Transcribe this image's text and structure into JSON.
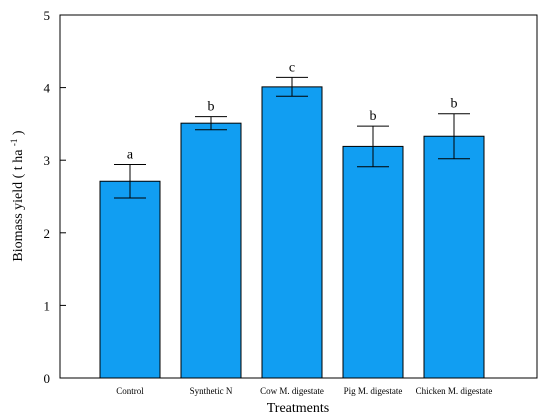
{
  "chart_data": {
    "type": "bar",
    "categories": [
      "Control",
      "Synthetic N",
      "Cow M. digestate",
      "Pig M. digestate",
      "Chicken M. digestate"
    ],
    "values": [
      2.71,
      3.51,
      4.01,
      3.19,
      3.33
    ],
    "errors": [
      0.23,
      0.09,
      0.13,
      0.28,
      0.31
    ],
    "significance_letters": [
      "a",
      "b",
      "c",
      "b",
      "b"
    ],
    "xlabel": "Treatments",
    "ylabel": "Biomass yield ( t ha",
    "ylabel_superscript": "-1",
    "ylabel_suffix": ")",
    "ylim": [
      0,
      5
    ],
    "yticks": [
      0,
      1,
      2,
      3,
      4,
      5
    ],
    "bar_color": "#119ef2",
    "grid": false,
    "legend": "none"
  }
}
